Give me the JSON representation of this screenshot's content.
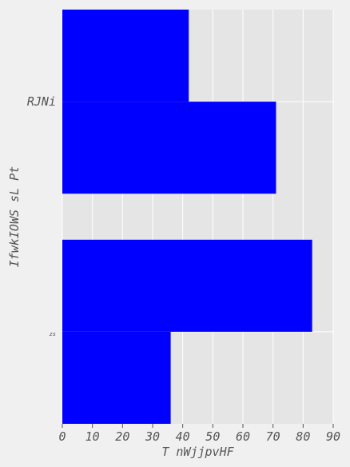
{
  "chart_data": {
    "type": "bar",
    "orientation": "horizontal",
    "categories": [
      "zs",
      "RJNi"
    ],
    "series": [
      {
        "values": [
          36,
          71
        ]
      },
      {
        "values": [
          83,
          42
        ]
      }
    ],
    "xlabel": "T nWjjpvHF",
    "ylabel": "IfwkIOWS sL Pt",
    "xlim": [
      0,
      90
    ],
    "xticks": [
      0,
      10,
      20,
      30,
      40,
      50,
      60,
      70,
      80,
      90
    ],
    "grid": true,
    "legend": "none",
    "colors": {
      "bars": "#0000ff",
      "plot_background": "#e5e5e5",
      "figure_background": "#f0f0f0",
      "grid": "#ffffff"
    }
  }
}
